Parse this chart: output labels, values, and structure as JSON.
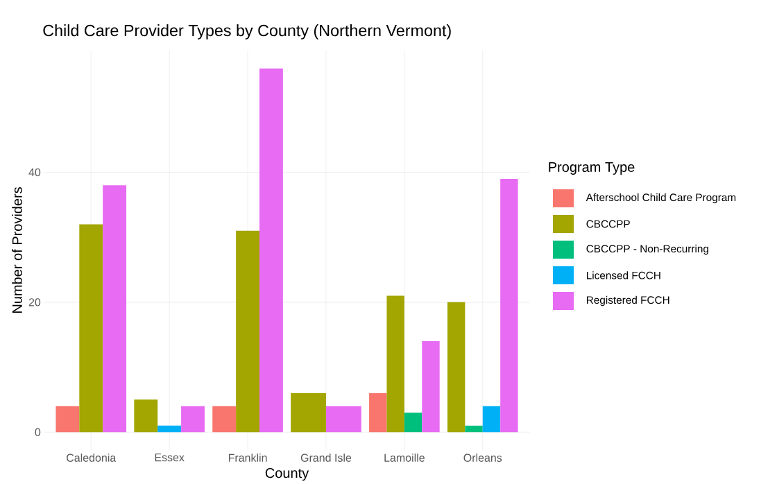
{
  "chart_data": {
    "type": "bar",
    "title": "Child Care Provider Types by County (Northern Vermont)",
    "xlabel": "County",
    "ylabel": "Number of Providers",
    "legend_title": "Program Type",
    "categories": [
      "Caledonia",
      "Essex",
      "Franklin",
      "Grand Isle",
      "Lamoille",
      "Orleans"
    ],
    "series": [
      {
        "name": "Afterschool Child Care Program",
        "color": "#f8766d",
        "values": [
          4,
          null,
          4,
          null,
          6,
          null
        ]
      },
      {
        "name": "CBCCPP",
        "color": "#a3a500",
        "values": [
          32,
          5,
          31,
          6,
          21,
          20
        ]
      },
      {
        "name": "CBCCPP - Non-Recurring",
        "color": "#00bf7d",
        "values": [
          null,
          null,
          null,
          null,
          3,
          1
        ]
      },
      {
        "name": "Licensed FCCH",
        "color": "#00b0f6",
        "values": [
          null,
          1,
          null,
          null,
          null,
          4
        ]
      },
      {
        "name": "Registered FCCH",
        "color": "#e76bf3",
        "values": [
          38,
          4,
          56,
          4,
          14,
          39
        ]
      }
    ],
    "ylim": [
      -2.8,
      58.8
    ],
    "yticks": [
      0,
      20,
      40
    ],
    "grid": true,
    "legend": "right"
  }
}
